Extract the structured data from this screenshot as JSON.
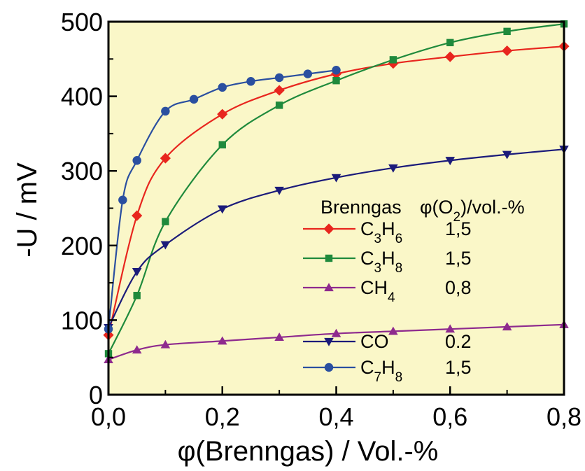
{
  "chart_data": {
    "type": "line",
    "xlabel": "φ(Brenngas) / Vol.-%",
    "ylabel": "-U / mV",
    "xlim": [
      0,
      0.8
    ],
    "ylim": [
      0,
      500
    ],
    "x_ticks": [
      "0,0",
      "0,2",
      "0,4",
      "0,6",
      "0,8"
    ],
    "y_ticks": [
      "0",
      "100",
      "200",
      "300",
      "400",
      "500"
    ],
    "plot_background": "#FAF7C8",
    "legend": {
      "header_gas": "Brenngas",
      "header_o2": "φ(O₂)/vol.-%",
      "position": "lower-right"
    },
    "series": [
      {
        "name": "C₃H₆",
        "o2": "1,5",
        "color": "#E8261E",
        "marker": "diamond",
        "points": [
          [
            0.0,
            80
          ],
          [
            0.05,
            240
          ],
          [
            0.1,
            317
          ],
          [
            0.2,
            376
          ],
          [
            0.3,
            408
          ],
          [
            0.4,
            430
          ],
          [
            0.5,
            444
          ],
          [
            0.6,
            453
          ],
          [
            0.7,
            461
          ],
          [
            0.8,
            467
          ]
        ]
      },
      {
        "name": "C₃H₈",
        "o2": "1,5",
        "color": "#1F8A3C",
        "marker": "square",
        "points": [
          [
            0.0,
            55
          ],
          [
            0.05,
            133
          ],
          [
            0.1,
            232
          ],
          [
            0.2,
            335
          ],
          [
            0.3,
            388
          ],
          [
            0.4,
            421
          ],
          [
            0.5,
            449
          ],
          [
            0.6,
            472
          ],
          [
            0.7,
            487
          ],
          [
            0.8,
            497
          ]
        ]
      },
      {
        "name": "CH₄",
        "o2": "0,8",
        "color": "#8E2A8E",
        "marker": "triangle-up",
        "points": [
          [
            0.0,
            47
          ],
          [
            0.05,
            60
          ],
          [
            0.1,
            67
          ],
          [
            0.2,
            72
          ],
          [
            0.3,
            77
          ],
          [
            0.4,
            82
          ],
          [
            0.5,
            85
          ],
          [
            0.6,
            88
          ],
          [
            0.7,
            91
          ],
          [
            0.8,
            94
          ]
        ]
      },
      {
        "name": "CO",
        "o2": "0.2",
        "color": "#1B1B7A",
        "marker": "triangle-down",
        "points": [
          [
            0.0,
            90
          ],
          [
            0.05,
            165
          ],
          [
            0.1,
            201
          ],
          [
            0.2,
            249
          ],
          [
            0.3,
            274
          ],
          [
            0.4,
            291
          ],
          [
            0.5,
            304
          ],
          [
            0.6,
            314
          ],
          [
            0.7,
            322
          ],
          [
            0.8,
            329
          ]
        ]
      },
      {
        "name": "C₇H₈",
        "o2": "1,5",
        "color": "#2A4FA0",
        "marker": "circle",
        "points": [
          [
            0.0,
            88
          ],
          [
            0.025,
            261
          ],
          [
            0.05,
            314
          ],
          [
            0.1,
            380
          ],
          [
            0.15,
            396
          ],
          [
            0.2,
            412
          ],
          [
            0.25,
            420
          ],
          [
            0.3,
            425
          ],
          [
            0.35,
            430
          ],
          [
            0.4,
            435
          ]
        ]
      }
    ]
  }
}
